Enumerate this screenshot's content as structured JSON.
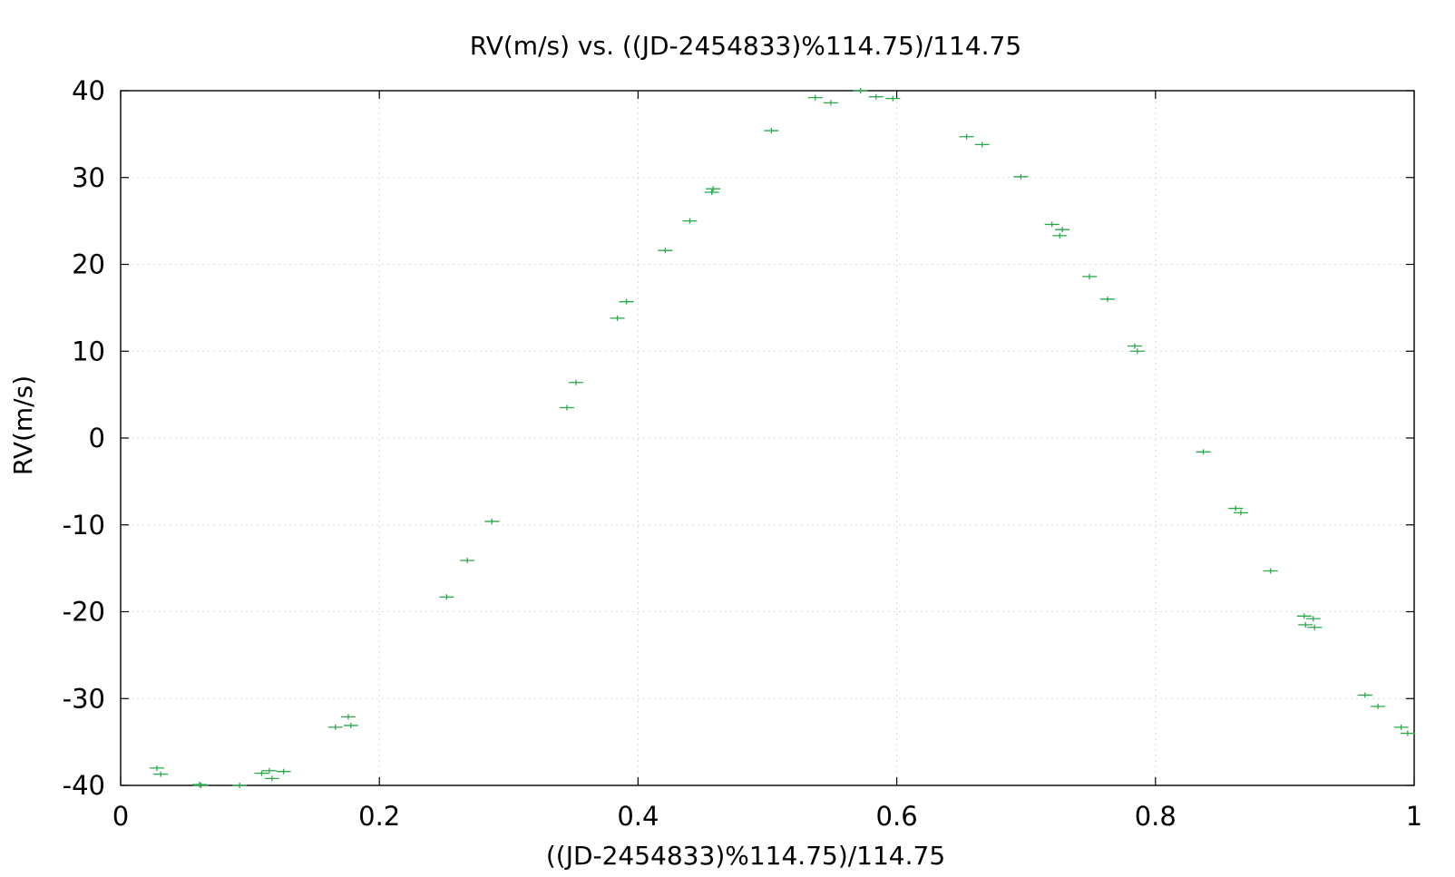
{
  "chart_data": {
    "type": "scatter",
    "title": "RV(m/s) vs. ((JD-2454833)%114.75)/114.75",
    "xlabel": "((JD-2454833)%114.75)/114.75",
    "ylabel": "RV(m/s)",
    "xlim": [
      0,
      1
    ],
    "ylim": [
      -40,
      40
    ],
    "xticks": [
      0,
      0.2,
      0.4,
      0.6,
      0.8,
      1
    ],
    "xtick_labels": [
      "0",
      "0.2",
      "0.4",
      "0.6",
      "0.8",
      "1"
    ],
    "yticks": [
      -40,
      -30,
      -20,
      -10,
      0,
      10,
      20,
      30,
      40
    ],
    "ytick_labels": [
      "-40",
      "-30",
      "-20",
      "-10",
      "0",
      "10",
      "20",
      "30",
      "40"
    ],
    "grid": true,
    "marker": "plus with horizontal error bar",
    "color": "#2aa84a",
    "series": [
      {
        "x": [
          0.028,
          0.031,
          0.061,
          0.062,
          0.092,
          0.109,
          0.115,
          0.117,
          0.126,
          0.166,
          0.176,
          0.178,
          0.252,
          0.268,
          0.287,
          0.345,
          0.352,
          0.384,
          0.391,
          0.421,
          0.44,
          0.457,
          0.458,
          0.503,
          0.537,
          0.549,
          0.572,
          0.584,
          0.597,
          0.654,
          0.666,
          0.696,
          0.72,
          0.726,
          0.728,
          0.749,
          0.763,
          0.784,
          0.786,
          0.837,
          0.862,
          0.866,
          0.889,
          0.915,
          0.916,
          0.922,
          0.923,
          0.962,
          0.972,
          0.99,
          0.995
        ],
        "y": [
          -38.0,
          -38.7,
          -39.9,
          -40.0,
          -40.0,
          -38.6,
          -38.3,
          -39.2,
          -38.4,
          -33.3,
          -32.1,
          -33.1,
          -18.3,
          -14.1,
          -9.6,
          3.5,
          6.4,
          13.8,
          15.7,
          21.6,
          25.0,
          28.3,
          28.7,
          35.4,
          39.2,
          38.6,
          40.0,
          39.3,
          39.1,
          34.7,
          33.8,
          30.1,
          24.6,
          23.3,
          24.0,
          18.6,
          16.0,
          10.6,
          10.0,
          -1.6,
          -8.1,
          -8.6,
          -15.3,
          -20.5,
          -21.5,
          -20.8,
          -21.8,
          -29.6,
          -30.9,
          -33.3,
          -34.0
        ]
      }
    ]
  }
}
